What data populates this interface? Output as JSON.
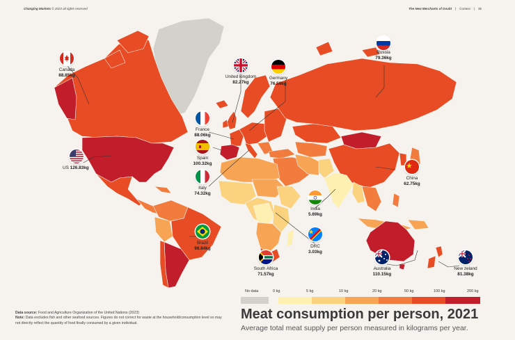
{
  "header": {
    "left_title": "Changing Markets",
    "left_rest": "© 2024 all rights reserved",
    "right_title": "The New Merchants of Doubt",
    "right_section": "Context",
    "page_number": "35"
  },
  "title": "Meat consumption per person, 2021",
  "subtitle": "Average total meat supply per person measured in kilograms per year.",
  "data_source_label": "Data source:",
  "data_source_text": "Food and Agriculture Organization of the United Nations (2023)",
  "note_label": "Note:",
  "note_text": "Data excludes fish and other seafood sources. Figures do not correct for waste at the household/consumption level so may not directly reflect the quantity of food finally consumed by a given individual.",
  "legend": {
    "no_data_label": "No data",
    "no_data_color": "#d3d1cc",
    "labels": [
      "0 kg",
      "5 kg",
      "10 kg",
      "20 kg",
      "50 kg",
      "100 kg",
      "200 kg"
    ],
    "colors": [
      "#fdf0b0",
      "#fbd27e",
      "#f7a554",
      "#f27c3d",
      "#e84c24",
      "#c11d2b"
    ]
  },
  "countries": [
    {
      "name": "Canada",
      "value": "88.85kg",
      "flag": "canada-flag"
    },
    {
      "name": "United kingdom",
      "value": "82.27kg",
      "flag": "uk-flag"
    },
    {
      "name": "Germany",
      "value": "76.59kg",
      "flag": "germany-flag"
    },
    {
      "name": "Russia",
      "value": "79.36kg",
      "flag": "russia-flag"
    },
    {
      "name": "France",
      "value": "88.06kg",
      "flag": "france-flag"
    },
    {
      "name": "Spain",
      "value": "100.32kg",
      "flag": "spain-flag"
    },
    {
      "name": "US",
      "value": "126.83kg",
      "flag": "us-flag"
    },
    {
      "name": "Italy",
      "value": "74.32kg",
      "flag": "italy-flag"
    },
    {
      "name": "China",
      "value": "62.75kg",
      "flag": "china-flag"
    },
    {
      "name": "India",
      "value": "5.69kg",
      "flag": "india-flag"
    },
    {
      "name": "Brazil",
      "value": "98.84kg",
      "flag": "brazil-flag"
    },
    {
      "name": "DRC",
      "value": "3.03kg",
      "flag": "drc-flag"
    },
    {
      "name": "South Africa",
      "value": "71.57kg",
      "flag": "south-africa-flag"
    },
    {
      "name": "Australia",
      "value": "110.15kg",
      "flag": "australia-flag"
    },
    {
      "name": "New zeland",
      "value": "81.38kg",
      "flag": "new-zealand-flag"
    }
  ]
}
